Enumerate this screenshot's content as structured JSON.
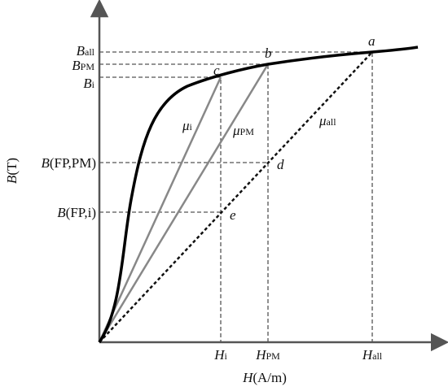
{
  "axes": {
    "y_label": {
      "main": "B",
      "rest": "(T)"
    },
    "x_label": {
      "main": "H",
      "rest": "(A/m)"
    }
  },
  "y_labels": [
    {
      "main": "B",
      "sub": "all"
    },
    {
      "main": "B",
      "sub": "PM"
    },
    {
      "main": "B",
      "sub": "i"
    },
    {
      "main": "B",
      "rest": "(FP,PM)"
    },
    {
      "main": "B",
      "rest": "(FP,i)"
    }
  ],
  "x_labels": [
    {
      "main": "H",
      "sub": "i"
    },
    {
      "main": "H",
      "sub": "PM"
    },
    {
      "main": "H",
      "sub": "all"
    }
  ],
  "points": [
    "a",
    "b",
    "c",
    "d",
    "e"
  ],
  "slopes": [
    {
      "main": "μ",
      "sub": "i"
    },
    {
      "main": "μ",
      "sub": "PM"
    },
    {
      "main": "μ",
      "sub": "all"
    }
  ]
}
